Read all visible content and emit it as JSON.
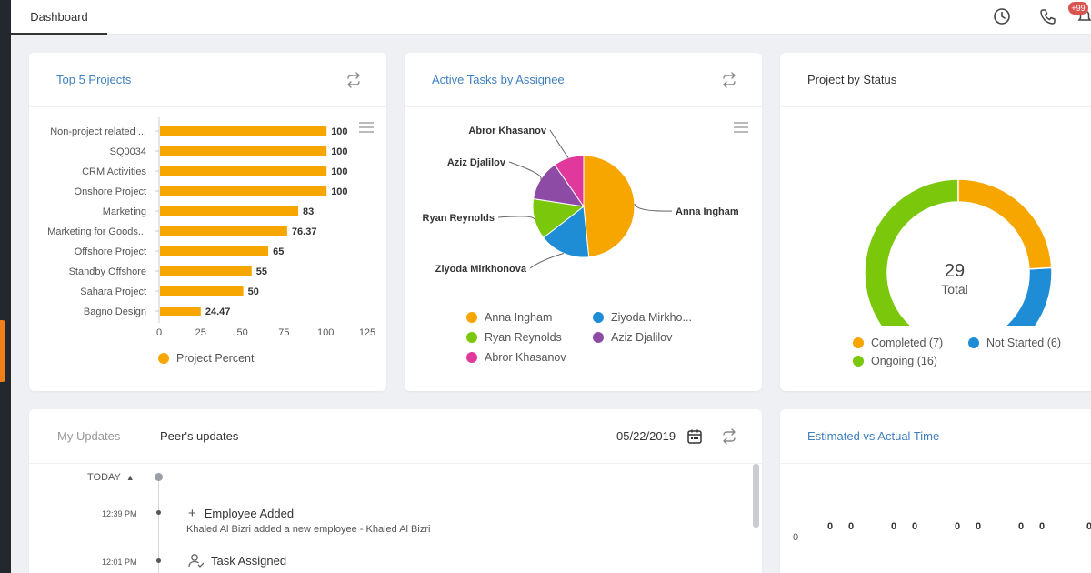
{
  "topbar": {
    "active_tab": "Dashboard",
    "notification_count": "+99",
    "icons": [
      "clock-icon",
      "phone-icon",
      "notification-icon"
    ]
  },
  "top_projects": {
    "title": "Top 5 Projects",
    "legend_label": "Project Percent",
    "bar_color": "#f7a600",
    "chart_data": {
      "type": "bar",
      "orientation": "horizontal",
      "categories": [
        "Non-project related ...",
        "SQ0034",
        "CRM Activities",
        "Onshore Project",
        "Marketing",
        "Marketing for Goods...",
        "Offshore Project",
        "Standby Offshore",
        "Sahara Project",
        "Bagno Design"
      ],
      "values": [
        100,
        100,
        100,
        100,
        83,
        76.37,
        65,
        55,
        50,
        24.47
      ],
      "value_labels": [
        "100",
        "100",
        "100",
        "100",
        "83",
        "76.37",
        "65",
        "55",
        "50",
        "24.47"
      ],
      "x_ticks": [
        "0",
        "25",
        "50",
        "75",
        "100",
        "125"
      ],
      "xlim": [
        0,
        125
      ],
      "series": [
        {
          "name": "Project Percent",
          "values": [
            100,
            100,
            100,
            100,
            83,
            76.37,
            65,
            55,
            50,
            24.47
          ]
        }
      ]
    }
  },
  "active_tasks": {
    "title": "Active Tasks by Assignee",
    "chart_data": {
      "type": "pie",
      "labels": [
        "Anna Ingham",
        "Ziyoda Mirkhonova",
        "Ryan Reynolds",
        "Aziz Djalilov",
        "Abror Khasanov"
      ],
      "values": [
        15,
        5,
        4,
        4,
        3
      ],
      "colors": [
        "#f7a600",
        "#1f8dd6",
        "#7ac70c",
        "#8e4ba6",
        "#e0399b"
      ]
    },
    "legend": [
      "Anna Ingham",
      "Ziyoda Mirkho...",
      "Ryan Reynolds",
      "Aziz Djalilov",
      "Abror Khasanov"
    ]
  },
  "project_status": {
    "title": "Project by Status",
    "total_value": "29",
    "total_label": "Total",
    "chart_data": {
      "type": "pie",
      "variant": "donut",
      "labels": [
        "Completed",
        "Not Started",
        "Ongoing"
      ],
      "values": [
        7,
        6,
        16
      ],
      "colors": [
        "#f7a600",
        "#1f8dd6",
        "#7ac70c"
      ]
    },
    "legend": [
      "Completed (7)",
      "Not Started (6)",
      "Ongoing (16)"
    ]
  },
  "updates": {
    "tab_my": "My Updates",
    "tab_peers": "Peer's updates",
    "date": "05/22/2019",
    "today_label": "TODAY",
    "entries": [
      {
        "time": "12:39 PM",
        "title": "Employee Added",
        "desc": "Khaled Al Bizri added a new employee - Khaled Al Bizri"
      },
      {
        "time": "12:01 PM",
        "title": "Task Assigned",
        "desc": ""
      }
    ]
  },
  "est_actual": {
    "title": "Estimated vs Actual Time",
    "y_tick": "0",
    "value_labels": [
      "0",
      "0",
      "0",
      "0",
      "0",
      "0",
      "0",
      "0",
      "0"
    ]
  }
}
